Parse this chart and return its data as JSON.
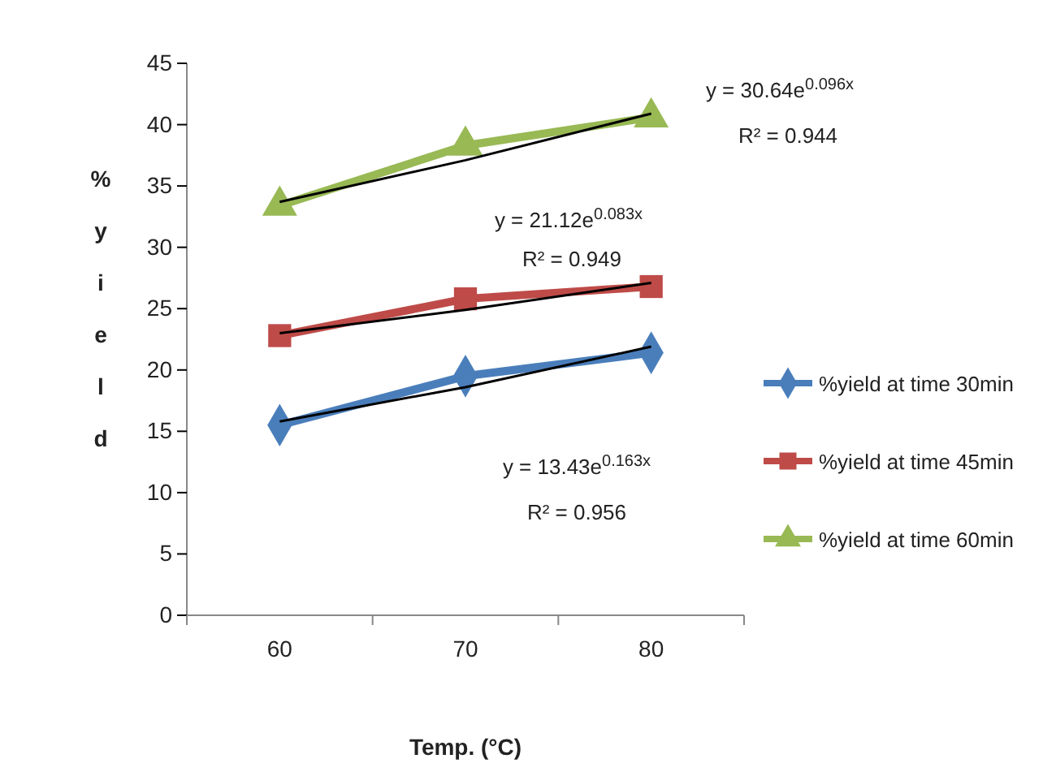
{
  "chart_data": {
    "type": "line",
    "xlabel": "Temp. (°C)",
    "ylabel": "%yield",
    "categories": [
      "60",
      "70",
      "80"
    ],
    "ylim": [
      0,
      45
    ],
    "yticks": [
      0,
      5,
      10,
      15,
      20,
      25,
      30,
      35,
      40,
      45
    ],
    "grid": false,
    "legend": "right",
    "line_style": "solid",
    "series": [
      {
        "name": "%yield at time 30min",
        "color": "#4a7ebb",
        "values": [
          15.5,
          19.5,
          21.4
        ],
        "marker": "diamond"
      },
      {
        "name": "%yield at time 45min",
        "color": "#be4b48",
        "values": [
          22.8,
          25.8,
          26.8
        ],
        "marker": "square"
      },
      {
        "name": "%yield at time 60min",
        "color": "#98b954",
        "values": [
          33.4,
          38.3,
          40.6
        ],
        "marker": "triangle"
      },
      {
        "color": "#000000",
        "values": [
          15.8,
          18.6,
          21.9
        ],
        "marker": "none"
      },
      {
        "color": "#000000",
        "values": [
          23.0,
          24.9,
          27.1
        ],
        "marker": "none"
      },
      {
        "color": "#000000",
        "values": [
          33.7,
          37.1,
          40.9
        ],
        "marker": "none"
      }
    ],
    "annotations": [
      "y = 30.64e$^{0.096x}$",
      "R² = 0.944",
      "y = 21.12e$^{0.083x}$",
      "R² = 0.949",
      "y = 13.43e$^{0.163x}$",
      "R² = 0.956"
    ]
  }
}
